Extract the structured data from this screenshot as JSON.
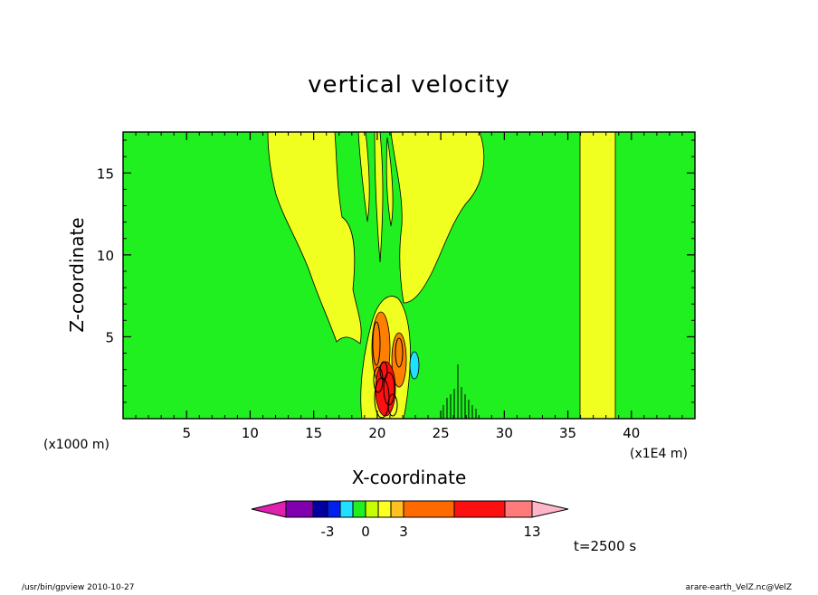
{
  "chart_data": {
    "type": "heatmap",
    "title": "vertical velocity",
    "xlabel": "X-coordinate",
    "ylabel": "Z-coordinate",
    "x_unit_left": "(x1000 m)",
    "x_unit_right": "(x1E4 m)",
    "xlim": [
      0,
      45
    ],
    "ylim": [
      0,
      17.5
    ],
    "xticks": [
      "5",
      "10",
      "15",
      "20",
      "25",
      "30",
      "35",
      "40"
    ],
    "yticks": [
      "5",
      "10",
      "15"
    ],
    "grid": false,
    "background_level": "0 to 1",
    "features": [
      {
        "label": "updraft column",
        "x": [
          36.2,
          38.8
        ],
        "z": [
          0,
          17.5
        ],
        "level": "1 to 2"
      },
      {
        "label": "yellow plume left",
        "x": [
          11.4,
          19.5
        ],
        "z": [
          4.5,
          17.5
        ],
        "level": "1 to 2"
      },
      {
        "label": "yellow plume right",
        "x": [
          21.5,
          28.5
        ],
        "z": [
          6.5,
          17.5
        ],
        "level": "1 to 2"
      },
      {
        "label": "convective core",
        "x": [
          19.5,
          22.5
        ],
        "z": [
          0,
          7
        ],
        "level": "3 to 13"
      },
      {
        "label": "downdraft",
        "x": [
          22.6,
          23.2
        ],
        "z": [
          2.5,
          4
        ],
        "level": "-1 to 0"
      }
    ]
  },
  "colorbar": {
    "labels": [
      "-3",
      "0",
      "3",
      "13"
    ],
    "colors": [
      "#e020b0",
      "#8000b0",
      "#0000a0",
      "#0020f0",
      "#20e0ff",
      "#20f020",
      "#c8ff00",
      "#ffff20",
      "#ffc020",
      "#ff6a00",
      "#ff1010",
      "#ff7a7a",
      "#ffb6c8"
    ]
  },
  "colors": {
    "field_green": "#20f020",
    "field_yellow": "#f0ff20",
    "orange": "#ff8000",
    "red": "#ff1010",
    "cyan": "#20e0ff"
  },
  "time_label": "t=2500 s",
  "footer": {
    "left": "/usr/bin/gpview   2010-10-27",
    "right": "arare-earth_VelZ.nc@VelZ"
  }
}
